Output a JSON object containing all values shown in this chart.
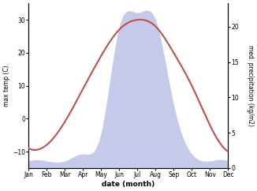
{
  "months": [
    "Jan",
    "Feb",
    "Mar",
    "Apr",
    "May",
    "Jun",
    "Jul",
    "Aug",
    "Sep",
    "Oct",
    "Nov",
    "Dec"
  ],
  "x": [
    1,
    2,
    3,
    4,
    5,
    6,
    7,
    8,
    9,
    10,
    11,
    12
  ],
  "temp": [
    -9,
    -8,
    -1,
    9,
    19,
    27,
    30,
    28,
    20,
    10,
    -2,
    -10
  ],
  "precip": [
    1,
    1,
    1,
    2,
    5,
    20,
    22,
    21,
    9,
    2,
    1,
    1
  ],
  "temp_color": "#c0504d",
  "precip_fill_color": "#c5cae8",
  "ylabel_left": "max temp (C)",
  "ylabel_right": "med. precipitation (kg/m2)",
  "xlabel": "date (month)",
  "ylim_left": [
    -15,
    35
  ],
  "ylim_right": [
    0,
    23.33
  ],
  "yticks_left": [
    -10,
    0,
    10,
    20,
    30
  ],
  "yticks_right": [
    0,
    5,
    10,
    15,
    20
  ],
  "bg_color": "#ffffff",
  "figsize": [
    3.26,
    2.42
  ],
  "dpi": 100
}
